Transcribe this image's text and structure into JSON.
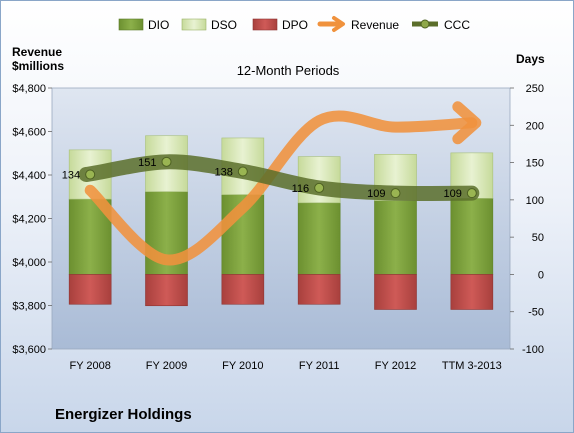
{
  "chart_data": {
    "type": "bar",
    "title": "12-Month Periods",
    "categories": [
      "FY 2008",
      "FY 2009",
      "FY 2010",
      "FY 2011",
      "FY 2012",
      "TTM 3-2013"
    ],
    "left_axis": {
      "label_line1": "Revenue",
      "label_line2": "$millions",
      "ylim": [
        3600,
        4800
      ],
      "ticks": [
        3600,
        3800,
        4000,
        4200,
        4400,
        4600,
        4800
      ],
      "tick_labels": [
        "$3,600",
        "$3,800",
        "$4,000",
        "$4,200",
        "$4,400",
        "$4,600",
        "$4,800"
      ]
    },
    "right_axis": {
      "label": "Days",
      "ylim": [
        -100,
        250
      ],
      "ticks": [
        -100,
        -50,
        0,
        50,
        100,
        150,
        200,
        250
      ],
      "tick_labels": [
        "-100",
        "-50",
        "0",
        "50",
        "100",
        "150",
        "200",
        "250"
      ]
    },
    "legend": {
      "placement": "top",
      "items": [
        "DIO",
        "DSO",
        "DPO",
        "Revenue",
        "CCC"
      ]
    },
    "series": [
      {
        "name": "DIO",
        "axis": "right",
        "kind": "stacked-bar",
        "color": "#7ea03a",
        "values": [
          101,
          111,
          107,
          96,
          99,
          102
        ]
      },
      {
        "name": "DSO",
        "axis": "right",
        "kind": "stacked-bar",
        "color": "#d6e5b3",
        "values": [
          66,
          75,
          76,
          62,
          62,
          61
        ]
      },
      {
        "name": "DPO",
        "axis": "right",
        "kind": "stacked-bar-negative",
        "color": "#c0504d",
        "values": [
          -40,
          -42,
          -40,
          -40,
          -47,
          -47
        ]
      },
      {
        "name": "Revenue",
        "axis": "left",
        "kind": "arrow-line",
        "color": "#f0923d",
        "values": [
          4330,
          4010,
          4250,
          4650,
          4620,
          4640
        ]
      },
      {
        "name": "CCC",
        "axis": "right",
        "kind": "line",
        "color": "#5b6e2a",
        "values": [
          134,
          151,
          138,
          116,
          109,
          109
        ]
      }
    ],
    "data_labels": [
      "134",
      "151",
      "138",
      "116",
      "109",
      "109"
    ],
    "grid": false
  },
  "company_name": "Energizer Holdings"
}
